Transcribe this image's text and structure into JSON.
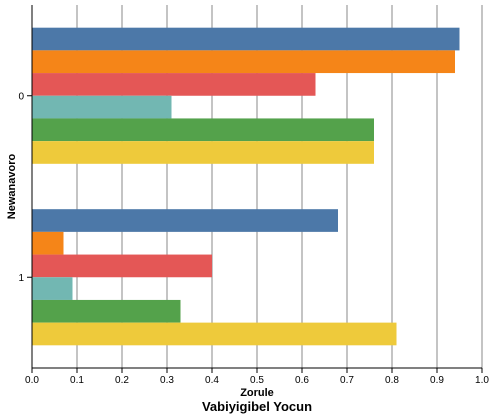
{
  "chart_data": {
    "type": "bar",
    "orientation": "horizontal",
    "title": "Vabiyigibel Yocun",
    "xlabel": "Zorule",
    "ylabel": "Newanavoro",
    "xlim": [
      0,
      1.0
    ],
    "x_ticks": [
      "0.0",
      "0.1",
      "0.2",
      "0.3",
      "0.4",
      "0.5",
      "0.6",
      "0.7",
      "0.8",
      "0.9",
      "1.0"
    ],
    "grid": true,
    "categories": [
      "0",
      "1"
    ],
    "series": [
      {
        "color": "#4c78a8",
        "values": [
          0.95,
          0.68
        ]
      },
      {
        "color": "#f58518",
        "values": [
          0.94,
          0.07
        ]
      },
      {
        "color": "#e45756",
        "values": [
          0.63,
          0.4
        ]
      },
      {
        "color": "#72b7b2",
        "values": [
          0.31,
          0.09
        ]
      },
      {
        "color": "#54a24b",
        "values": [
          0.76,
          0.33
        ]
      },
      {
        "color": "#eeca3b",
        "values": [
          0.76,
          0.81
        ]
      }
    ]
  }
}
